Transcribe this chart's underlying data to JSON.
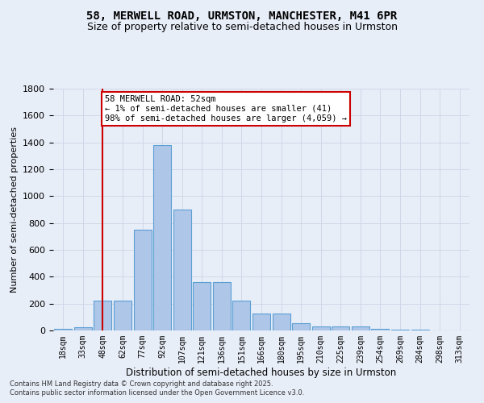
{
  "title_line1": "58, MERWELL ROAD, URMSTON, MANCHESTER, M41 6PR",
  "title_line2": "Size of property relative to semi-detached houses in Urmston",
  "xlabel": "Distribution of semi-detached houses by size in Urmston",
  "ylabel": "Number of semi-detached properties",
  "footnote1": "Contains HM Land Registry data © Crown copyright and database right 2025.",
  "footnote2": "Contains public sector information licensed under the Open Government Licence v3.0.",
  "bin_labels": [
    "18sqm",
    "33sqm",
    "48sqm",
    "62sqm",
    "77sqm",
    "92sqm",
    "107sqm",
    "121sqm",
    "136sqm",
    "151sqm",
    "166sqm",
    "180sqm",
    "195sqm",
    "210sqm",
    "225sqm",
    "239sqm",
    "254sqm",
    "269sqm",
    "284sqm",
    "298sqm",
    "313sqm"
  ],
  "bar_values": [
    10,
    25,
    225,
    225,
    750,
    1380,
    900,
    360,
    360,
    225,
    125,
    125,
    55,
    30,
    30,
    30,
    15,
    5,
    5,
    2,
    2
  ],
  "bar_color": "#aec6e8",
  "bar_edge_color": "#5a9fd4",
  "vline_index": 2,
  "annotation_text": "58 MERWELL ROAD: 52sqm\n← 1% of semi-detached houses are smaller (41)\n98% of semi-detached houses are larger (4,059) →",
  "annotation_box_color": "#ffffff",
  "annotation_box_edge_color": "#cc0000",
  "vline_color": "#cc0000",
  "ylim": [
    0,
    1800
  ],
  "yticks": [
    0,
    200,
    400,
    600,
    800,
    1000,
    1200,
    1400,
    1600,
    1800
  ],
  "grid_color": "#d0d8e8",
  "bg_color": "#e8eef8",
  "title_fontsize": 10,
  "subtitle_fontsize": 9,
  "footnote_fontsize": 6
}
